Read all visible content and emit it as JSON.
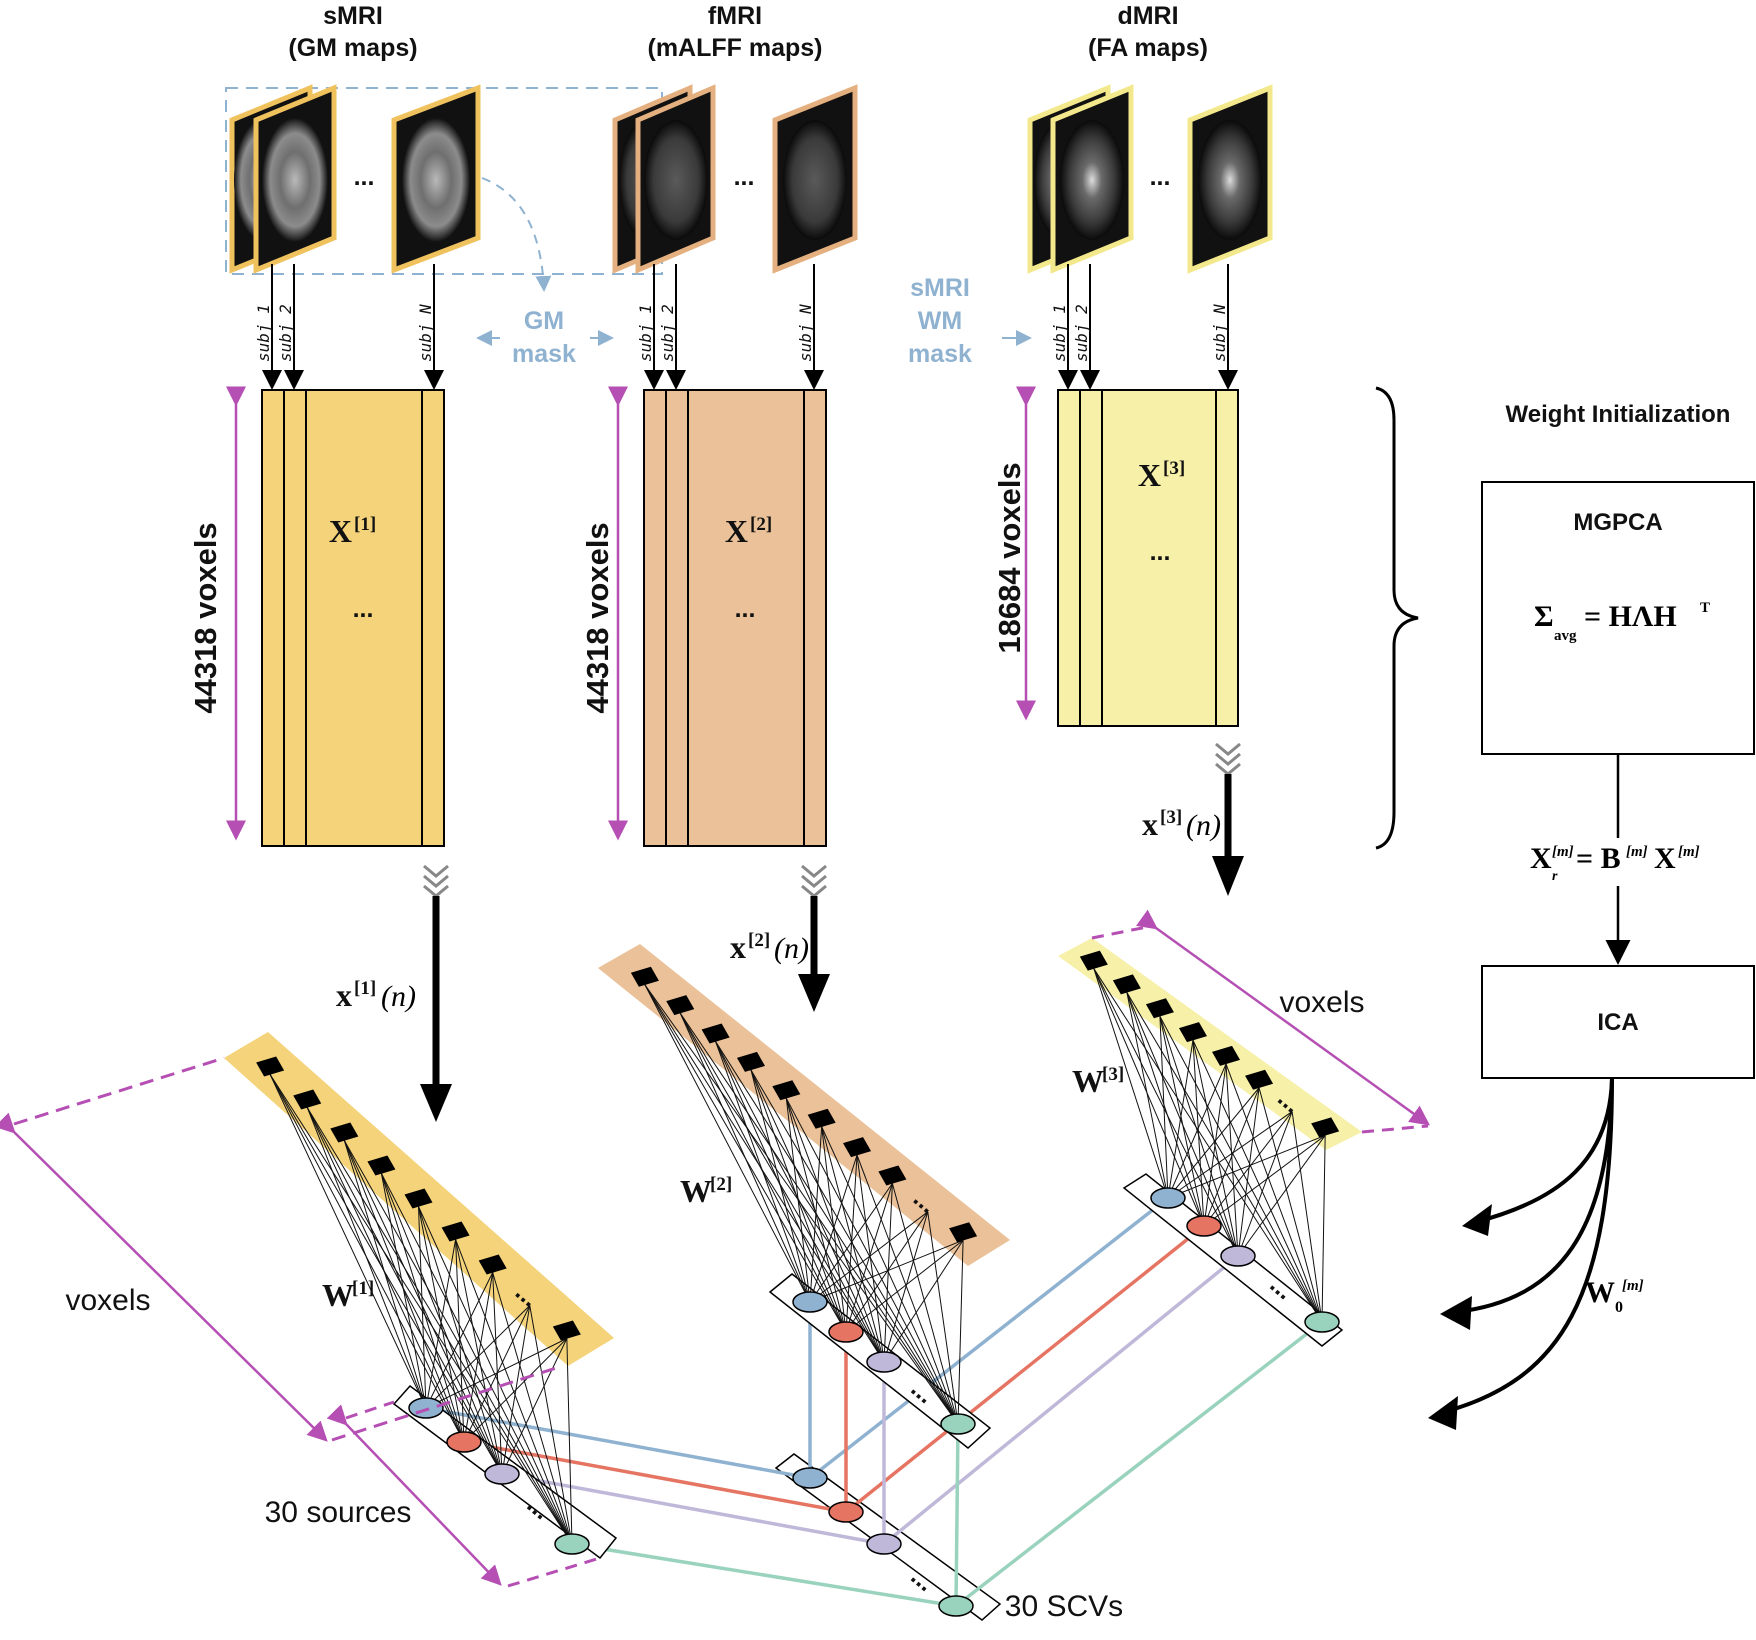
{
  "modalities": [
    {
      "title": "sMRI",
      "subtitle": "(GM maps)",
      "matrix": "X",
      "index": "[1]",
      "voxels": "44318 voxels",
      "vector": "x",
      "vector_index": "[1]",
      "weight": "W",
      "weight_index": "[1]",
      "fill": "#f4d37a",
      "border": "#f0c25e"
    },
    {
      "title": "fMRI",
      "subtitle": "(mALFF maps)",
      "matrix": "X",
      "index": "[2]",
      "voxels": "44318 voxels",
      "vector": "x",
      "vector_index": "[2]",
      "weight": "W",
      "weight_index": "[2]",
      "fill": "#eac198",
      "border": "#e5b07f"
    },
    {
      "title": "dMRI",
      "subtitle": "(FA maps)",
      "matrix": "X",
      "index": "[3]",
      "voxels": "18684 voxels",
      "vector": "x",
      "vector_index": "[3]",
      "weight": "W",
      "weight_index": "[3]",
      "fill": "#f7f0a8",
      "border": "#f3e98c"
    }
  ],
  "subjects": [
    "subj 1",
    "subj 2",
    "subj N"
  ],
  "ellipsis": "...",
  "vector_arg": "(n)",
  "masks": {
    "gm": [
      "GM",
      "mask"
    ],
    "wm": [
      "sMRI",
      "WM",
      "mask"
    ]
  },
  "weight_init": {
    "title": "Weight Initialization",
    "mgpca": "MGPCA",
    "ica": "ICA",
    "sigma": "Σ",
    "sigma_sub": "avg",
    "equals": "= HΛH",
    "transpose": "T",
    "xr": "X",
    "xr_sub": "r",
    "xr_sup": "[m]",
    "xr_eq": "= B",
    "b_sup": "[m]",
    "x_tail": "X",
    "x_tail_sup": "[m]",
    "w0": "W",
    "w0_sub": "0",
    "w0_sup": "[m]"
  },
  "labels": {
    "voxels_left": "voxels",
    "voxels_right": "voxels",
    "sources": "30 sources",
    "scvs": "30 SCVs"
  },
  "colors": {
    "scv1": "#8fb2d1",
    "scv2": "#e67462",
    "scv3": "#c0b8d9",
    "scv4": "#9ad3bd",
    "arrow_magenta": "#b54fb4",
    "mask_blue": "#8fb2d1"
  }
}
